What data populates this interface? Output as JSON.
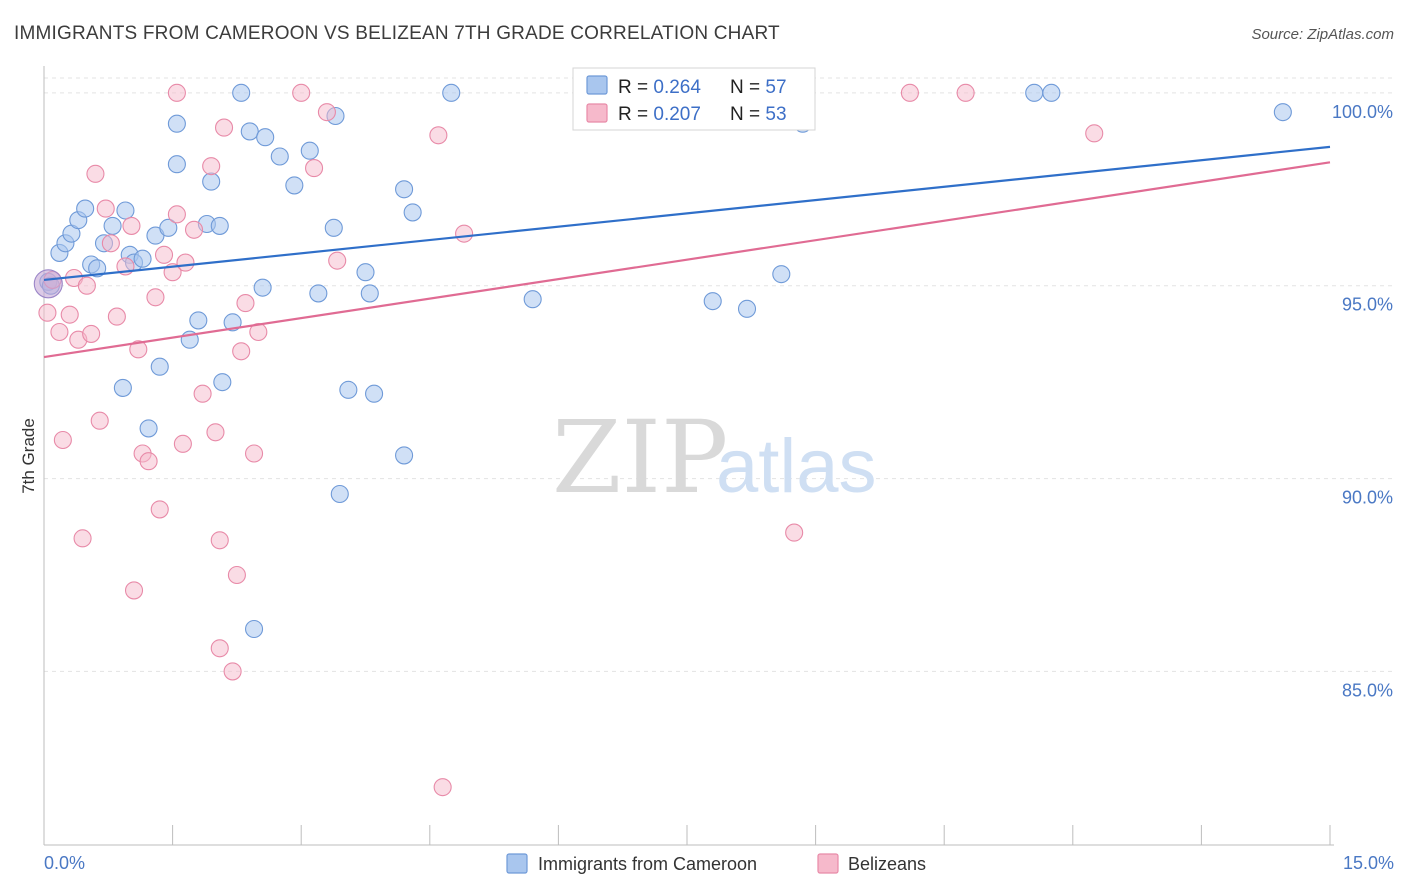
{
  "title": "IMMIGRANTS FROM CAMEROON VS BELIZEAN 7TH GRADE CORRELATION CHART",
  "source": "Source: ZipAtlas.com",
  "watermark": {
    "zip": "ZIP",
    "atlas": "atlas"
  },
  "legend_top": [
    {
      "r_label": "R = ",
      "r_value": "0.264",
      "n_label": "N = ",
      "n_value": "57"
    },
    {
      "r_label": "R = ",
      "r_value": "0.207",
      "n_label": "N = ",
      "n_value": "53"
    }
  ],
  "legend_bottom": [
    "Immigrants from Cameroon",
    "Belizeans"
  ],
  "colors": {
    "blue_fill": "#a9c6ee",
    "blue_stroke": "#6f9ad8",
    "blue_line": "#2f6fc9",
    "pink_fill": "#f6b9cb",
    "pink_stroke": "#e88aa8",
    "pink_line": "#e06b93",
    "grid": "#e3e3e3",
    "axis_text": "#4a78c4"
  },
  "chart_data": {
    "type": "scatter",
    "title": "IMMIGRANTS FROM CAMEROON VS BELIZEAN 7TH GRADE CORRELATION CHART",
    "xlabel": "",
    "ylabel": "7th Grade",
    "xlim": [
      0,
      15
    ],
    "ylim": [
      80.5,
      100.8
    ],
    "x_tick_labels": [
      "0.0%",
      "15.0%"
    ],
    "y_ticks": [
      85,
      90,
      95,
      100
    ],
    "y_tick_labels": [
      "85.0%",
      "90.0%",
      "95.0%",
      "100.0%"
    ],
    "grid": true,
    "series": [
      {
        "name": "Immigrants from Cameroon",
        "R": 0.264,
        "N": 57,
        "trend": {
          "x": [
            0,
            15
          ],
          "y": [
            95.15,
            98.6
          ]
        },
        "points": [
          [
            0.05,
            95.1
          ],
          [
            0.08,
            95.0
          ],
          [
            0.18,
            95.85
          ],
          [
            0.25,
            96.1
          ],
          [
            0.32,
            96.35
          ],
          [
            0.4,
            96.7
          ],
          [
            0.48,
            97.0
          ],
          [
            0.55,
            95.55
          ],
          [
            0.62,
            95.45
          ],
          [
            0.7,
            96.1
          ],
          [
            0.8,
            96.55
          ],
          [
            0.95,
            96.95
          ],
          [
            1.0,
            95.8
          ],
          [
            1.05,
            95.6
          ],
          [
            1.15,
            95.7
          ],
          [
            1.3,
            96.3
          ],
          [
            1.45,
            96.5
          ],
          [
            1.55,
            98.15
          ],
          [
            1.55,
            99.2
          ],
          [
            1.9,
            96.6
          ],
          [
            1.95,
            97.7
          ],
          [
            2.05,
            96.55
          ],
          [
            2.3,
            100.0
          ],
          [
            2.4,
            99.0
          ],
          [
            2.58,
            98.85
          ],
          [
            2.75,
            98.35
          ],
          [
            2.92,
            97.6
          ],
          [
            3.1,
            98.5
          ],
          [
            3.38,
            96.5
          ],
          [
            3.4,
            99.4
          ],
          [
            3.75,
            95.35
          ],
          [
            3.8,
            94.8
          ],
          [
            4.2,
            97.5
          ],
          [
            4.3,
            96.9
          ],
          [
            0.92,
            92.35
          ],
          [
            1.22,
            91.3
          ],
          [
            1.35,
            92.9
          ],
          [
            1.7,
            93.6
          ],
          [
            1.8,
            94.1
          ],
          [
            2.08,
            92.5
          ],
          [
            2.2,
            94.05
          ],
          [
            2.55,
            94.95
          ],
          [
            3.2,
            94.8
          ],
          [
            3.55,
            92.3
          ],
          [
            3.85,
            92.2
          ],
          [
            4.2,
            90.6
          ],
          [
            3.45,
            89.6
          ],
          [
            2.45,
            86.1
          ],
          [
            5.7,
            94.65
          ],
          [
            7.8,
            94.6
          ],
          [
            8.2,
            94.4
          ],
          [
            8.6,
            95.3
          ],
          [
            8.85,
            99.2
          ],
          [
            11.55,
            100.0
          ],
          [
            11.75,
            100.0
          ],
          [
            14.45,
            99.5
          ],
          [
            4.75,
            100.0
          ]
        ]
      },
      {
        "name": "Belizeans",
        "R": 0.207,
        "N": 53,
        "trend": {
          "x": [
            0,
            15
          ],
          "y": [
            93.15,
            98.2
          ]
        },
        "points": [
          [
            0.04,
            94.3
          ],
          [
            0.1,
            95.15
          ],
          [
            0.18,
            93.8
          ],
          [
            0.22,
            91.0
          ],
          [
            0.3,
            94.25
          ],
          [
            0.35,
            95.2
          ],
          [
            0.4,
            93.6
          ],
          [
            0.45,
            88.45
          ],
          [
            0.5,
            95.0
          ],
          [
            0.55,
            93.75
          ],
          [
            0.6,
            97.9
          ],
          [
            0.65,
            91.5
          ],
          [
            0.72,
            97.0
          ],
          [
            0.78,
            96.1
          ],
          [
            0.85,
            94.2
          ],
          [
            0.95,
            95.5
          ],
          [
            1.02,
            96.55
          ],
          [
            1.05,
            87.1
          ],
          [
            1.1,
            93.35
          ],
          [
            1.15,
            90.65
          ],
          [
            1.22,
            90.45
          ],
          [
            1.3,
            94.7
          ],
          [
            1.35,
            89.2
          ],
          [
            1.4,
            95.8
          ],
          [
            1.5,
            95.35
          ],
          [
            1.55,
            96.85
          ],
          [
            1.62,
            90.9
          ],
          [
            1.65,
            95.6
          ],
          [
            1.75,
            96.45
          ],
          [
            1.85,
            92.2
          ],
          [
            1.95,
            98.1
          ],
          [
            2.0,
            91.2
          ],
          [
            2.05,
            88.4
          ],
          [
            2.1,
            99.1
          ],
          [
            2.2,
            85.0
          ],
          [
            2.25,
            87.5
          ],
          [
            2.3,
            93.3
          ],
          [
            2.35,
            94.55
          ],
          [
            2.45,
            90.65
          ],
          [
            2.5,
            93.8
          ],
          [
            2.05,
            85.6
          ],
          [
            1.55,
            100.0
          ],
          [
            3.0,
            100.0
          ],
          [
            3.15,
            98.05
          ],
          [
            3.3,
            99.5
          ],
          [
            3.42,
            95.65
          ],
          [
            4.6,
            98.9
          ],
          [
            4.9,
            96.35
          ],
          [
            4.65,
            82.0
          ],
          [
            8.75,
            88.6
          ],
          [
            10.1,
            100.0
          ],
          [
            10.75,
            100.0
          ],
          [
            12.25,
            98.95
          ]
        ]
      }
    ]
  }
}
